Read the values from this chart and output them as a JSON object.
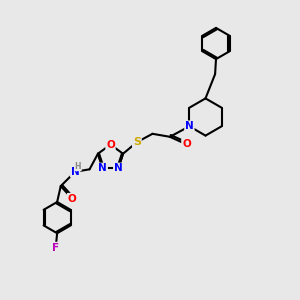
{
  "background_color": "#e8e8e8",
  "atoms": {
    "colors": {
      "C": "#000000",
      "N": "#0000ff",
      "O": "#ff0000",
      "S": "#ccaa00",
      "F": "#bb00bb",
      "H": "#888888"
    }
  },
  "bond_color": "#000000",
  "bond_width": 1.5,
  "figsize": [
    3.0,
    3.0
  ],
  "dpi": 100
}
